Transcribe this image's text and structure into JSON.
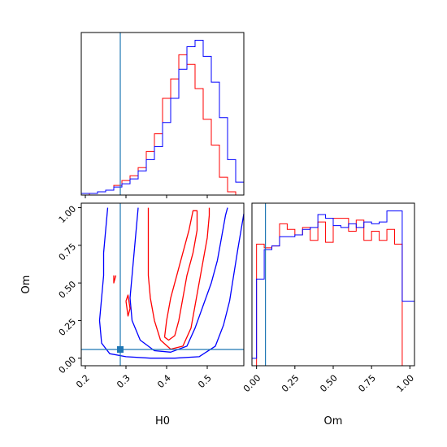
{
  "colors": {
    "series_red": "#ff0000",
    "series_blue": "#0000ff",
    "truth_line": "#1f77b4",
    "frame": "#000000",
    "background": "#ffffff"
  },
  "chart_data": [
    {
      "panel": "H0 marginal",
      "type": "histogram",
      "xlabel": "",
      "ylabel": "",
      "xlim": [
        0.19,
        0.59
      ],
      "x_ticks": [
        0.2,
        0.3,
        0.4,
        0.5
      ],
      "x_tick_labels_shown": false,
      "y_ticks_shown": false,
      "truth_x": 0.286,
      "bin_edges": [
        0.19,
        0.21,
        0.23,
        0.25,
        0.27,
        0.29,
        0.31,
        0.33,
        0.35,
        0.37,
        0.39,
        0.41,
        0.43,
        0.45,
        0.47,
        0.49,
        0.51,
        0.53,
        0.55,
        0.57,
        0.59
      ],
      "series": [
        {
          "color": "red",
          "counts": [
            0,
            1,
            2,
            3,
            6,
            9,
            12,
            17,
            27,
            38,
            60,
            72,
            87,
            81,
            66,
            47,
            31,
            11,
            2,
            0
          ]
        },
        {
          "color": "blue",
          "counts": [
            1,
            1,
            2,
            3,
            5,
            7,
            10,
            15,
            22,
            30,
            45,
            60,
            78,
            92,
            96,
            86,
            70,
            48,
            22,
            8
          ]
        }
      ]
    },
    {
      "panel": "Om marginal",
      "type": "histogram",
      "xlabel": "Om",
      "ylabel": "",
      "xlim": [
        -0.03,
        1.03
      ],
      "x_ticks": [
        0.0,
        0.25,
        0.5,
        0.75,
        1.0
      ],
      "x_tick_labels": [
        "0.00",
        "0.25",
        "0.50",
        "0.75",
        "1.00"
      ],
      "y_ticks_shown": false,
      "truth_x": 0.058,
      "bin_edges": [
        -0.03,
        0.0,
        0.05,
        0.1,
        0.15,
        0.2,
        0.25,
        0.3,
        0.35,
        0.4,
        0.45,
        0.5,
        0.55,
        0.6,
        0.65,
        0.7,
        0.75,
        0.8,
        0.85,
        0.9,
        0.95,
        1.03
      ],
      "series": [
        {
          "color": "red",
          "counts": [
            0,
            66,
            64,
            65,
            77,
            74,
            71,
            75,
            68,
            78,
            67,
            80,
            80,
            73,
            79,
            68,
            73,
            68,
            74,
            66,
            0
          ]
        },
        {
          "color": "blue",
          "counts": [
            4,
            47,
            63,
            65,
            70,
            70,
            71,
            74,
            75,
            82,
            80,
            76,
            75,
            77,
            75,
            78,
            77,
            78,
            84,
            84,
            35
          ]
        }
      ]
    },
    {
      "panel": "H0 vs Om joint",
      "type": "contour",
      "xlabel": "H0",
      "ylabel": "Om",
      "xlim": [
        0.19,
        0.59
      ],
      "ylim": [
        -0.05,
        1.03
      ],
      "x_ticks": [
        0.2,
        0.3,
        0.4,
        0.5
      ],
      "x_tick_labels": [
        "0.2",
        "0.3",
        "0.4",
        "0.5"
      ],
      "y_ticks": [
        0.0,
        0.25,
        0.5,
        0.75,
        1.0
      ],
      "y_tick_labels": [
        "0.00",
        "0.25",
        "0.50",
        "0.75",
        "1.00"
      ],
      "truth_point": [
        0.286,
        0.058
      ],
      "series": [
        {
          "color": "blue",
          "contours": [
            [
              [
                0.255,
                1.0
              ],
              [
                0.25,
                0.85
              ],
              [
                0.245,
                0.7
              ],
              [
                0.245,
                0.55
              ],
              [
                0.24,
                0.4
              ],
              [
                0.235,
                0.25
              ],
              [
                0.24,
                0.1
              ],
              [
                0.26,
                0.03
              ],
              [
                0.3,
                0.01
              ],
              [
                0.36,
                0.0
              ],
              [
                0.42,
                0.0
              ],
              [
                0.48,
                0.01
              ],
              [
                0.52,
                0.08
              ],
              [
                0.54,
                0.22
              ],
              [
                0.555,
                0.38
              ],
              [
                0.565,
                0.55
              ],
              [
                0.575,
                0.72
              ],
              [
                0.585,
                0.88
              ],
              [
                0.59,
                0.96
              ]
            ],
            [
              [
                0.33,
                1.0
              ],
              [
                0.325,
                0.85
              ],
              [
                0.32,
                0.7
              ],
              [
                0.315,
                0.55
              ],
              [
                0.31,
                0.4
              ],
              [
                0.315,
                0.25
              ],
              [
                0.335,
                0.12
              ],
              [
                0.37,
                0.05
              ],
              [
                0.41,
                0.04
              ],
              [
                0.45,
                0.08
              ],
              [
                0.47,
                0.2
              ],
              [
                0.49,
                0.35
              ],
              [
                0.51,
                0.5
              ],
              [
                0.525,
                0.65
              ],
              [
                0.535,
                0.8
              ],
              [
                0.545,
                0.95
              ],
              [
                0.55,
                1.0
              ]
            ]
          ]
        },
        {
          "color": "red",
          "contours": [
            [
              [
                0.355,
                1.0
              ],
              [
                0.355,
                0.85
              ],
              [
                0.355,
                0.7
              ],
              [
                0.355,
                0.55
              ],
              [
                0.36,
                0.4
              ],
              [
                0.37,
                0.25
              ],
              [
                0.385,
                0.12
              ],
              [
                0.41,
                0.06
              ],
              [
                0.44,
                0.08
              ],
              [
                0.46,
                0.2
              ],
              [
                0.47,
                0.35
              ],
              [
                0.48,
                0.5
              ],
              [
                0.49,
                0.65
              ],
              [
                0.5,
                0.8
              ],
              [
                0.505,
                0.95
              ],
              [
                0.505,
                1.0
              ]
            ],
            [
              [
                0.395,
                0.14
              ],
              [
                0.4,
                0.25
              ],
              [
                0.41,
                0.4
              ],
              [
                0.425,
                0.55
              ],
              [
                0.44,
                0.7
              ],
              [
                0.455,
                0.85
              ],
              [
                0.465,
                0.98
              ],
              [
                0.475,
                0.98
              ],
              [
                0.475,
                0.85
              ],
              [
                0.465,
                0.7
              ],
              [
                0.45,
                0.55
              ],
              [
                0.44,
                0.4
              ],
              [
                0.43,
                0.25
              ],
              [
                0.42,
                0.15
              ],
              [
                0.405,
                0.12
              ],
              [
                0.395,
                0.14
              ]
            ],
            [
              [
                0.27,
                0.55
              ],
              [
                0.27,
                0.5
              ],
              [
                0.275,
                0.55
              ]
            ],
            [
              [
                0.3,
                0.38
              ],
              [
                0.305,
                0.28
              ],
              [
                0.31,
                0.33
              ],
              [
                0.305,
                0.42
              ],
              [
                0.3,
                0.38
              ]
            ]
          ]
        }
      ]
    }
  ]
}
